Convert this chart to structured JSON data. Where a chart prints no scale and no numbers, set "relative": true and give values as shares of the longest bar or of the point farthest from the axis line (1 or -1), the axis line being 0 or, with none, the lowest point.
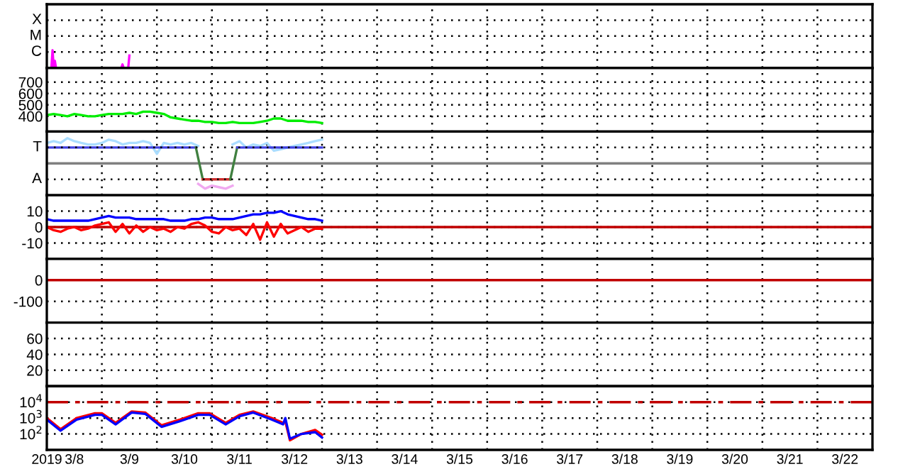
{
  "chart_data": [
    {
      "type": "line",
      "relative": true,
      "tick_labels": false,
      "grid": true,
      "xlim": [
        "2019-03-08",
        "2019-03-23"
      ],
      "ylim": [
        0,
        3.6
      ],
      "annotations": [
        "X",
        "M",
        "C"
      ],
      "xticks": [
        {
          "value": "2019-03-09",
          "label": null
        },
        {
          "value": "2019-03-10",
          "label": null
        },
        {
          "value": "2019-03-11",
          "label": null
        },
        {
          "value": "2019-03-12",
          "label": null
        },
        {
          "value": "2019-03-13",
          "label": null
        },
        {
          "value": "2019-03-14",
          "label": null
        },
        {
          "value": "2019-03-15",
          "label": null
        },
        {
          "value": "2019-03-16",
          "label": null
        },
        {
          "value": "2019-03-17",
          "label": null
        },
        {
          "value": "2019-03-18",
          "label": null
        },
        {
          "value": "2019-03-19",
          "label": null
        },
        {
          "value": "2019-03-20",
          "label": null
        },
        {
          "value": "2019-03-21",
          "label": null
        },
        {
          "value": "2019-03-22",
          "label": null
        }
      ],
      "series": [
        {
          "color": "#ff00ff",
          "x": [
            "2019-03-08T00:00",
            "2019-03-08T02:00",
            "2019-03-08T02:30",
            "2019-03-08T03:00",
            "2019-03-08T03:30",
            "2019-03-08T04:00",
            "2019-03-09T08:30",
            "2019-03-09T09:00",
            "2019-03-09T09:30",
            "2019-03-09T11:30",
            "2019-03-09T12:00"
          ],
          "values": [
            0,
            0,
            1,
            0,
            0.4,
            0,
            0,
            0.2,
            0,
            0,
            0.7
          ]
        }
      ]
    },
    {
      "type": "line",
      "tick_labels": "y",
      "grid": true,
      "xlim": [
        "2019-03-08",
        "2019-03-23"
      ],
      "ylim": [
        265,
        825
      ],
      "yticks": [
        400,
        500,
        600,
        700
      ],
      "xticks": [
        {
          "value": "2019-03-09",
          "label": null
        },
        {
          "value": "2019-03-10",
          "label": null
        },
        {
          "value": "2019-03-11",
          "label": null
        },
        {
          "value": "2019-03-12",
          "label": null
        },
        {
          "value": "2019-03-13",
          "label": null
        },
        {
          "value": "2019-03-14",
          "label": null
        },
        {
          "value": "2019-03-15",
          "label": null
        },
        {
          "value": "2019-03-16",
          "label": null
        },
        {
          "value": "2019-03-17",
          "label": null
        },
        {
          "value": "2019-03-18",
          "label": null
        },
        {
          "value": "2019-03-19",
          "label": null
        },
        {
          "value": "2019-03-20",
          "label": null
        },
        {
          "value": "2019-03-21",
          "label": null
        },
        {
          "value": "2019-03-22",
          "label": null
        }
      ],
      "x": [
        "2019-03-08T00:00",
        "2019-03-08T03:00",
        "2019-03-08T06:00",
        "2019-03-08T09:00",
        "2019-03-08T12:00",
        "2019-03-08T15:00",
        "2019-03-08T18:00",
        "2019-03-08T21:00",
        "2019-03-09T00:00",
        "2019-03-09T03:00",
        "2019-03-09T06:00",
        "2019-03-09T09:00",
        "2019-03-09T12:00",
        "2019-03-09T15:00",
        "2019-03-09T18:00",
        "2019-03-09T21:00",
        "2019-03-10T00:00",
        "2019-03-10T03:00",
        "2019-03-10T06:00",
        "2019-03-10T09:00",
        "2019-03-10T12:00",
        "2019-03-10T15:00",
        "2019-03-10T18:00",
        "2019-03-10T21:00",
        "2019-03-11T00:00",
        "2019-03-11T03:00",
        "2019-03-11T06:00",
        "2019-03-11T09:00",
        "2019-03-11T12:00",
        "2019-03-11T15:00",
        "2019-03-11T18:00",
        "2019-03-11T21:00",
        "2019-03-12T00:00",
        "2019-03-12T03:00",
        "2019-03-12T06:00",
        "2019-03-12T09:00",
        "2019-03-12T12:00",
        "2019-03-12T15:00",
        "2019-03-12T18:00",
        "2019-03-12T21:00",
        "2019-03-13T00:00"
      ],
      "series": [
        {
          "color": "#00ee00",
          "values": [
            410,
            420,
            410,
            400,
            420,
            410,
            400,
            400,
            410,
            420,
            420,
            420,
            430,
            420,
            440,
            440,
            430,
            420,
            390,
            380,
            370,
            360,
            360,
            350,
            350,
            340,
            340,
            350,
            340,
            340,
            340,
            350,
            360,
            380,
            380,
            360,
            360,
            360,
            350,
            350,
            340
          ]
        }
      ]
    },
    {
      "type": "line",
      "relative": true,
      "tick_labels": false,
      "grid": true,
      "xlim": [
        "2019-03-08",
        "2019-03-23"
      ],
      "ylim": [
        -1.26,
        1.26
      ],
      "annotations": [
        "T",
        "A"
      ],
      "xticks": [
        {
          "value": "2019-03-09",
          "label": null
        },
        {
          "value": "2019-03-10",
          "label": null
        },
        {
          "value": "2019-03-11",
          "label": null
        },
        {
          "value": "2019-03-12",
          "label": null
        },
        {
          "value": "2019-03-13",
          "label": null
        },
        {
          "value": "2019-03-14",
          "label": null
        },
        {
          "value": "2019-03-15",
          "label": null
        },
        {
          "value": "2019-03-16",
          "label": null
        },
        {
          "value": "2019-03-17",
          "label": null
        },
        {
          "value": "2019-03-18",
          "label": null
        },
        {
          "value": "2019-03-19",
          "label": null
        },
        {
          "value": "2019-03-20",
          "label": null
        },
        {
          "value": "2019-03-21",
          "label": null
        },
        {
          "value": "2019-03-22",
          "label": null
        }
      ],
      "ref_lines": [
        {
          "axis": "y",
          "value": 0,
          "color": "#808080"
        }
      ],
      "x": [
        "2019-03-08T00:00",
        "2019-03-08T03:00",
        "2019-03-08T06:00",
        "2019-03-08T09:00",
        "2019-03-08T12:00",
        "2019-03-08T15:00",
        "2019-03-08T18:00",
        "2019-03-08T21:00",
        "2019-03-09T00:00",
        "2019-03-09T03:00",
        "2019-03-09T06:00",
        "2019-03-09T09:00",
        "2019-03-09T12:00",
        "2019-03-09T15:00",
        "2019-03-09T18:00",
        "2019-03-09T21:00",
        "2019-03-10T00:00",
        "2019-03-10T03:00",
        "2019-03-10T06:00",
        "2019-03-10T09:00",
        "2019-03-10T12:00",
        "2019-03-10T15:00",
        "2019-03-10T18:00",
        "2019-03-10T21:00",
        "2019-03-11T00:00",
        "2019-03-11T03:00",
        "2019-03-11T06:00",
        "2019-03-11T09:00",
        "2019-03-11T12:00",
        "2019-03-11T15:00",
        "2019-03-11T18:00",
        "2019-03-11T21:00",
        "2019-03-12T00:00",
        "2019-03-12T03:00",
        "2019-03-12T06:00",
        "2019-03-12T09:00",
        "2019-03-12T12:00",
        "2019-03-12T15:00",
        "2019-03-12T18:00",
        "2019-03-12T21:00",
        "2019-03-13T00:00"
      ],
      "series": [
        {
          "color": "#aaddff",
          "values": [
            0.81,
            0.88,
            0.81,
            1,
            0.88,
            0.81,
            0.75,
            0.75,
            0.81,
            0.94,
            0.88,
            0.75,
            0.81,
            0.81,
            0.88,
            0.81,
            0.38,
            0.81,
            0.75,
            0.81,
            0.75,
            0.81,
            0.69,
            null,
            null,
            null,
            null,
            0.75,
            0.88,
            0.63,
            0.75,
            0.69,
            0.81,
            0.5,
            0.56,
            0.63,
            0.69,
            0.75,
            0.81,
            0.88,
            0.94
          ]
        },
        {
          "color": "#f0a8f0",
          "x": [
            "2019-03-10T18:00",
            "2019-03-10T21:00",
            "2019-03-11T00:00",
            "2019-03-11T03:00",
            "2019-03-11T06:00",
            "2019-03-11T09:00"
          ],
          "values": [
            -0.81,
            -1,
            -0.88,
            -0.94,
            -1,
            -0.88
          ]
        },
        {
          "color": "#4040e0",
          "x": [
            "2019-03-08T00:00",
            "2019-03-10T17:00"
          ],
          "values": [
            0.63,
            0.63
          ]
        },
        {
          "color": "#408040",
          "x": [
            "2019-03-10T17:00",
            "2019-03-10T20:00"
          ],
          "values": [
            0.63,
            -0.63
          ]
        },
        {
          "color": "#d03030",
          "x": [
            "2019-03-10T20:00",
            "2019-03-11T08:00"
          ],
          "values": [
            -0.63,
            -0.63
          ]
        },
        {
          "color": "#408040",
          "x": [
            "2019-03-11T08:00",
            "2019-03-11T11:00"
          ],
          "values": [
            -0.63,
            0.63
          ]
        },
        {
          "color": "#4040e0",
          "x": [
            "2019-03-11T11:00",
            "2019-03-13T00:00"
          ],
          "values": [
            0.63,
            0.63
          ]
        }
      ]
    },
    {
      "type": "line",
      "tick_labels": "y",
      "grid": true,
      "xlim": [
        "2019-03-08",
        "2019-03-23"
      ],
      "ylim": [
        -20,
        20
      ],
      "yticks": [
        -10,
        0,
        10
      ],
      "xticks": [
        {
          "value": "2019-03-09",
          "label": null
        },
        {
          "value": "2019-03-10",
          "label": null
        },
        {
          "value": "2019-03-11",
          "label": null
        },
        {
          "value": "2019-03-12",
          "label": null
        },
        {
          "value": "2019-03-13",
          "label": null
        },
        {
          "value": "2019-03-14",
          "label": null
        },
        {
          "value": "2019-03-15",
          "label": null
        },
        {
          "value": "2019-03-16",
          "label": null
        },
        {
          "value": "2019-03-17",
          "label": null
        },
        {
          "value": "2019-03-18",
          "label": null
        },
        {
          "value": "2019-03-19",
          "label": null
        },
        {
          "value": "2019-03-20",
          "label": null
        },
        {
          "value": "2019-03-21",
          "label": null
        },
        {
          "value": "2019-03-22",
          "label": null
        }
      ],
      "ref_lines": [
        {
          "axis": "y",
          "value": 0,
          "color": "#c00000"
        }
      ],
      "x": [
        "2019-03-08T00:00",
        "2019-03-08T03:00",
        "2019-03-08T06:00",
        "2019-03-08T09:00",
        "2019-03-08T12:00",
        "2019-03-08T15:00",
        "2019-03-08T18:00",
        "2019-03-08T21:00",
        "2019-03-09T00:00",
        "2019-03-09T03:00",
        "2019-03-09T06:00",
        "2019-03-09T09:00",
        "2019-03-09T12:00",
        "2019-03-09T15:00",
        "2019-03-09T18:00",
        "2019-03-09T21:00",
        "2019-03-10T00:00",
        "2019-03-10T03:00",
        "2019-03-10T06:00",
        "2019-03-10T09:00",
        "2019-03-10T12:00",
        "2019-03-10T15:00",
        "2019-03-10T18:00",
        "2019-03-10T21:00",
        "2019-03-11T00:00",
        "2019-03-11T03:00",
        "2019-03-11T06:00",
        "2019-03-11T09:00",
        "2019-03-11T12:00",
        "2019-03-11T15:00",
        "2019-03-11T18:00",
        "2019-03-11T21:00",
        "2019-03-12T00:00",
        "2019-03-12T03:00",
        "2019-03-12T06:00",
        "2019-03-12T09:00",
        "2019-03-12T12:00",
        "2019-03-12T15:00",
        "2019-03-12T18:00",
        "2019-03-12T21:00",
        "2019-03-13T00:00"
      ],
      "series": [
        {
          "color": "#0000ff",
          "values": [
            5,
            4,
            4,
            4,
            4,
            4,
            4,
            5,
            6,
            7,
            6,
            6,
            6,
            5,
            5,
            5,
            5,
            5,
            4,
            4,
            4,
            5,
            5,
            6,
            6,
            5,
            5,
            5,
            6,
            7,
            8,
            8,
            9,
            9,
            10,
            8,
            7,
            6,
            5,
            5,
            4
          ]
        },
        {
          "color": "#ff0000",
          "values": [
            0,
            -2,
            -3,
            -1,
            0,
            -2,
            -1,
            1,
            2,
            3,
            -3,
            2,
            -4,
            1,
            -3,
            0,
            -2,
            -1,
            -3,
            0,
            -1,
            2,
            3,
            1,
            -3,
            -4,
            0,
            -2,
            -1,
            -5,
            2,
            -8,
            3,
            -6,
            2,
            -4,
            -2,
            0,
            -3,
            -1,
            -1
          ]
        }
      ]
    },
    {
      "type": "line",
      "tick_labels": "y",
      "grid": true,
      "xlim": [
        "2019-03-08",
        "2019-03-23"
      ],
      "ylim": [
        -200,
        100
      ],
      "yticks": [
        -100,
        0
      ],
      "xticks": [
        {
          "value": "2019-03-09",
          "label": null
        },
        {
          "value": "2019-03-10",
          "label": null
        },
        {
          "value": "2019-03-11",
          "label": null
        },
        {
          "value": "2019-03-12",
          "label": null
        },
        {
          "value": "2019-03-13",
          "label": null
        },
        {
          "value": "2019-03-14",
          "label": null
        },
        {
          "value": "2019-03-15",
          "label": null
        },
        {
          "value": "2019-03-16",
          "label": null
        },
        {
          "value": "2019-03-17",
          "label": null
        },
        {
          "value": "2019-03-18",
          "label": null
        },
        {
          "value": "2019-03-19",
          "label": null
        },
        {
          "value": "2019-03-20",
          "label": null
        },
        {
          "value": "2019-03-21",
          "label": null
        },
        {
          "value": "2019-03-22",
          "label": null
        }
      ],
      "ref_lines": [
        {
          "axis": "y",
          "value": 0,
          "color": "#c00000"
        }
      ]
    },
    {
      "type": "line",
      "tick_labels": "y",
      "grid": true,
      "xlim": [
        "2019-03-08",
        "2019-03-23"
      ],
      "ylim": [
        0,
        80
      ],
      "yticks": [
        20,
        40,
        60
      ],
      "xticks": [
        {
          "value": "2019-03-09",
          "label": null
        },
        {
          "value": "2019-03-10",
          "label": null
        },
        {
          "value": "2019-03-11",
          "label": null
        },
        {
          "value": "2019-03-12",
          "label": null
        },
        {
          "value": "2019-03-13",
          "label": null
        },
        {
          "value": "2019-03-14",
          "label": null
        },
        {
          "value": "2019-03-15",
          "label": null
        },
        {
          "value": "2019-03-16",
          "label": null
        },
        {
          "value": "2019-03-17",
          "label": null
        },
        {
          "value": "2019-03-18",
          "label": null
        },
        {
          "value": "2019-03-19",
          "label": null
        },
        {
          "value": "2019-03-20",
          "label": null
        },
        {
          "value": "2019-03-21",
          "label": null
        },
        {
          "value": "2019-03-22",
          "label": null
        }
      ]
    },
    {
      "type": "line",
      "grid": true,
      "log": "y",
      "xlim": [
        "2019-03-08",
        "2019-03-23"
      ],
      "ylim": [
        10,
        100000
      ],
      "yticks": [
        {
          "value": 100,
          "label": "10$^{2}$"
        },
        {
          "value": 1000,
          "label": "10$^{3}$"
        },
        {
          "value": 10000,
          "label": "10$^{4}$"
        }
      ],
      "xticks": [
        {
          "value": "2019-03-09",
          "label": null
        },
        {
          "value": "2019-03-10",
          "label": null
        },
        {
          "value": "2019-03-11",
          "label": null
        },
        {
          "value": "2019-03-12",
          "label": null
        },
        {
          "value": "2019-03-13",
          "label": null
        },
        {
          "value": "2019-03-14",
          "label": null
        },
        {
          "value": "2019-03-15",
          "label": null
        },
        {
          "value": "2019-03-16",
          "label": null
        },
        {
          "value": "2019-03-17",
          "label": null
        },
        {
          "value": "2019-03-18",
          "label": null
        },
        {
          "value": "2019-03-19",
          "label": null
        },
        {
          "value": "2019-03-20",
          "label": null
        },
        {
          "value": "2019-03-21",
          "label": null
        },
        {
          "value": "2019-03-22",
          "label": null
        },
        {
          "value": "2019-03-08T00:00",
          "label": "2019"
        },
        {
          "value": "2019-03-08T12:00",
          "label": "3/8"
        },
        {
          "value": "2019-03-09T12:00",
          "label": "3/9"
        },
        {
          "value": "2019-03-10T12:00",
          "label": "3/10"
        },
        {
          "value": "2019-03-11T12:00",
          "label": "3/11"
        },
        {
          "value": "2019-03-12T12:00",
          "label": "3/12"
        },
        {
          "value": "2019-03-13T12:00",
          "label": "3/13"
        },
        {
          "value": "2019-03-14T12:00",
          "label": "3/14"
        },
        {
          "value": "2019-03-15T12:00",
          "label": "3/15"
        },
        {
          "value": "2019-03-16T12:00",
          "label": "3/16"
        },
        {
          "value": "2019-03-17T12:00",
          "label": "3/17"
        },
        {
          "value": "2019-03-18T12:00",
          "label": "3/18"
        },
        {
          "value": "2019-03-19T12:00",
          "label": "3/19"
        },
        {
          "value": "2019-03-20T12:00",
          "label": "3/20"
        },
        {
          "value": "2019-03-21T12:00",
          "label": "3/21"
        },
        {
          "value": "2019-03-22T12:00",
          "label": "3/22"
        }
      ],
      "ref_lines": [
        {
          "axis": "y",
          "value": 10000,
          "color": "#c00000",
          "line_style": "dashed"
        }
      ],
      "x": [
        "2019-03-08T00:00",
        "2019-03-08T06:00",
        "2019-03-08T13:00",
        "2019-03-08T21:00",
        "2019-03-09T00:00",
        "2019-03-09T06:00",
        "2019-03-09T13:00",
        "2019-03-09T19:00",
        "2019-03-10T02:00",
        "2019-03-10T10:00",
        "2019-03-10T18:00",
        "2019-03-10T23:00",
        "2019-03-11T06:00",
        "2019-03-11T12:00",
        "2019-03-11T18:00",
        "2019-03-12T02:00",
        "2019-03-12T07:00",
        "2019-03-12T08:00",
        "2019-03-12T10:00",
        "2019-03-12T15:00",
        "2019-03-12T21:00",
        "2019-03-13T00:00"
      ],
      "series": [
        {
          "color": "#ff0000",
          "values": [
            1000,
            200,
            1000,
            2000,
            2000,
            500,
            2600,
            2200,
            350,
            800,
            2000,
            2000,
            500,
            1600,
            2600,
            1000,
            500,
            600,
            40,
            100,
            180,
            90
          ]
        },
        {
          "color": "#0000ff",
          "values": [
            800,
            160,
            800,
            1600,
            1600,
            400,
            2200,
            1800,
            280,
            630,
            1600,
            1600,
            400,
            1300,
            2200,
            800,
            400,
            1000,
            50,
            100,
            130,
            60
          ]
        }
      ]
    }
  ]
}
